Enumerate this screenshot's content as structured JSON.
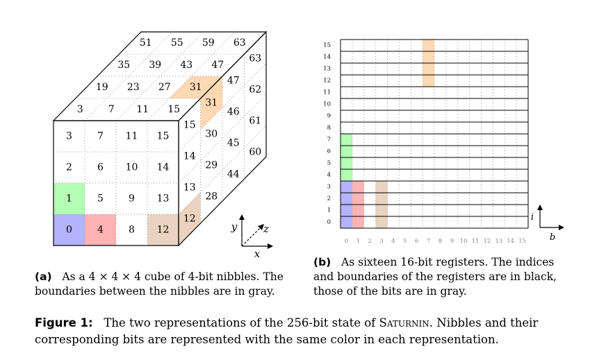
{
  "colors": {
    "blue": "#b3b3ff",
    "green": "#b3ffb3",
    "red": "#ffb3b3",
    "tan": "#e9d3bf",
    "orange": "#ffd9b3",
    "grid": "#9a9a9a"
  },
  "cube": {
    "front": [
      [
        "3",
        "7",
        "11",
        "15"
      ],
      [
        "2",
        "6",
        "10",
        "14"
      ],
      [
        "1",
        "5",
        "9",
        "13"
      ],
      [
        "0",
        "4",
        "8",
        "12"
      ]
    ],
    "top_rows": [
      [
        "51",
        "55",
        "59",
        "63"
      ],
      [
        "35",
        "39",
        "43",
        "47"
      ],
      [
        "19",
        "23",
        "27",
        "31"
      ],
      [
        "3",
        "7",
        "11",
        "15"
      ]
    ],
    "side_cols": [
      [
        "15",
        "14",
        "13",
        "12"
      ],
      [
        "31",
        "30",
        "29",
        "28"
      ],
      [
        "47",
        "46",
        "45",
        "44"
      ],
      [
        "63",
        "62",
        "61",
        "60"
      ]
    ],
    "axes": {
      "y": "y",
      "z": "z",
      "x": "x"
    }
  },
  "registers": {
    "row_labels": [
      "0",
      "1",
      "2",
      "3",
      "4",
      "5",
      "6",
      "7",
      "8",
      "9",
      "10",
      "11",
      "12",
      "13",
      "14",
      "15"
    ],
    "col_labels": [
      "0",
      "1",
      "2",
      "3",
      "4",
      "5",
      "6",
      "7",
      "8",
      "9",
      "10",
      "11",
      "12",
      "13",
      "14",
      "15"
    ],
    "axes": {
      "i": "i",
      "b": "b"
    }
  },
  "caption_a": {
    "tag": "(a)",
    "line1": "As a 4 × 4 × 4 cube of 4-bit nibbles. The",
    "line2": "boundaries between the nibbles are in gray."
  },
  "caption_b": {
    "tag": "(b)",
    "line1": "As sixteen 16-bit registers. The indices",
    "line2": "and boundaries of the registers are in black,",
    "line3": "those of the bits are in gray."
  },
  "figure_caption": {
    "tag": "Figure 1:",
    "text1_pre": "The two representations of the 256-bit state of",
    "name": "Saturnin",
    "text1_post": ". Nibbles and their",
    "line2": "corresponding bits are represented with the same color in each representation."
  }
}
